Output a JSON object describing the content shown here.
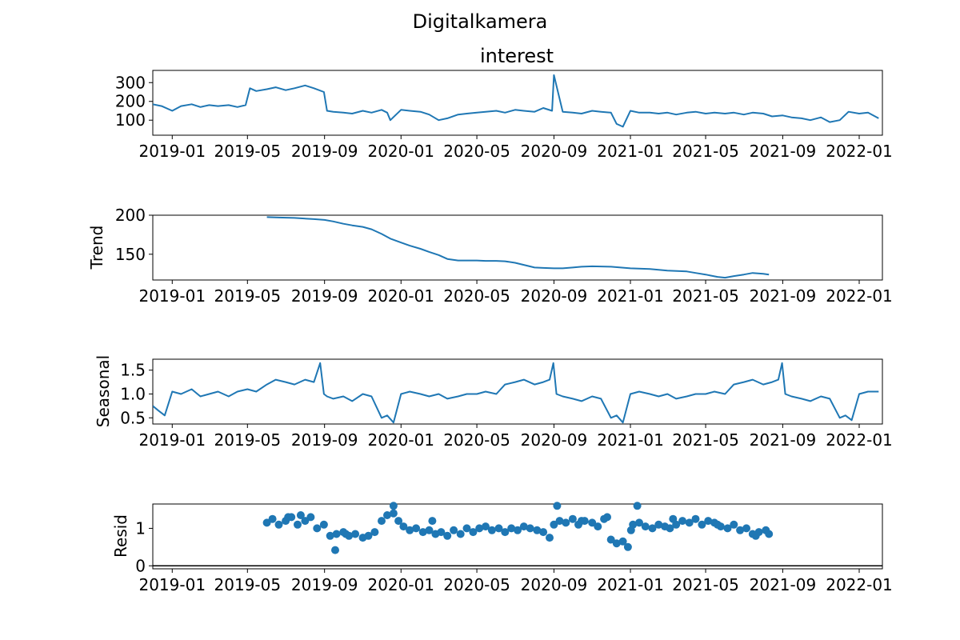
{
  "figure": {
    "suptitle": "Digitalkamera"
  },
  "chart_data": [
    {
      "id": "observed",
      "type": "line",
      "title": "interest",
      "ylabel": "",
      "xlim": [
        "2018-12-01",
        "2022-02-07"
      ],
      "ylim": [
        20,
        365
      ],
      "yticks": [
        100,
        200,
        300
      ],
      "ytick_labels": [
        "100",
        "200",
        "300"
      ],
      "xticks": [
        "2019-01-01",
        "2019-05-01",
        "2019-09-01",
        "2020-01-01",
        "2020-05-01",
        "2020-09-01",
        "2021-01-01",
        "2021-05-01",
        "2021-09-01",
        "2022-01-01"
      ],
      "xtick_labels": [
        "2019-01",
        "2019-05",
        "2019-09",
        "2020-01",
        "2020-05",
        "2020-09",
        "2021-01",
        "2021-05",
        "2021-09",
        "2022-01"
      ],
      "series": [
        {
          "color": "#1f77b4",
          "x": [
            "2018-12-01",
            "2018-12-15",
            "2019-01-01",
            "2019-01-15",
            "2019-02-01",
            "2019-02-15",
            "2019-03-01",
            "2019-03-15",
            "2019-04-01",
            "2019-04-15",
            "2019-04-28",
            "2019-05-05",
            "2019-05-15",
            "2019-06-01",
            "2019-06-15",
            "2019-07-01",
            "2019-07-15",
            "2019-08-01",
            "2019-08-15",
            "2019-08-31",
            "2019-09-05",
            "2019-09-15",
            "2019-10-01",
            "2019-10-15",
            "2019-11-01",
            "2019-11-15",
            "2019-12-01",
            "2019-12-10",
            "2019-12-15",
            "2020-01-01",
            "2020-01-15",
            "2020-02-01",
            "2020-02-15",
            "2020-03-01",
            "2020-03-15",
            "2020-04-01",
            "2020-04-15",
            "2020-05-01",
            "2020-05-15",
            "2020-06-01",
            "2020-06-15",
            "2020-07-01",
            "2020-07-15",
            "2020-08-01",
            "2020-08-15",
            "2020-08-29",
            "2020-09-01",
            "2020-09-15",
            "2020-10-01",
            "2020-10-15",
            "2020-11-01",
            "2020-11-15",
            "2020-12-01",
            "2020-12-10",
            "2020-12-20",
            "2021-01-01",
            "2021-01-15",
            "2021-02-01",
            "2021-02-15",
            "2021-03-01",
            "2021-03-15",
            "2021-04-01",
            "2021-04-15",
            "2021-05-01",
            "2021-05-15",
            "2021-06-01",
            "2021-06-15",
            "2021-07-01",
            "2021-07-15",
            "2021-08-01",
            "2021-08-15",
            "2021-09-01",
            "2021-09-15",
            "2021-10-01",
            "2021-10-15",
            "2021-11-01",
            "2021-11-15",
            "2021-12-01",
            "2021-12-15",
            "2022-01-01",
            "2022-01-15",
            "2022-02-01"
          ],
          "y": [
            185,
            175,
            150,
            175,
            185,
            170,
            180,
            175,
            180,
            170,
            180,
            270,
            255,
            265,
            275,
            260,
            270,
            285,
            270,
            250,
            150,
            145,
            140,
            135,
            150,
            140,
            155,
            140,
            100,
            155,
            150,
            145,
            130,
            100,
            110,
            130,
            135,
            140,
            145,
            150,
            140,
            155,
            150,
            145,
            165,
            150,
            340,
            145,
            140,
            135,
            150,
            145,
            140,
            80,
            65,
            150,
            140,
            140,
            135,
            140,
            130,
            140,
            145,
            135,
            140,
            135,
            140,
            130,
            140,
            135,
            120,
            125,
            115,
            110,
            100,
            115,
            90,
            100,
            145,
            135,
            140,
            110
          ]
        }
      ]
    },
    {
      "id": "trend",
      "type": "line",
      "title": "",
      "ylabel": "Trend",
      "xlim": [
        "2018-12-01",
        "2022-02-07"
      ],
      "ylim": [
        117,
        200
      ],
      "yticks": [
        150,
        200
      ],
      "ytick_labels": [
        "150",
        "200"
      ],
      "xticks": [
        "2019-01-01",
        "2019-05-01",
        "2019-09-01",
        "2020-01-01",
        "2020-05-01",
        "2020-09-01",
        "2021-01-01",
        "2021-05-01",
        "2021-09-01",
        "2022-01-01"
      ],
      "xtick_labels": [
        "2019-01",
        "2019-05",
        "2019-09",
        "2020-01",
        "2020-05",
        "2020-09",
        "2021-01",
        "2021-05",
        "2021-09",
        "2022-01"
      ],
      "series": [
        {
          "color": "#1f77b4",
          "x": [
            "2019-06-01",
            "2019-06-20",
            "2019-07-15",
            "2019-08-15",
            "2019-09-01",
            "2019-09-15",
            "2019-10-01",
            "2019-10-15",
            "2019-11-01",
            "2019-11-15",
            "2019-12-01",
            "2019-12-15",
            "2020-01-01",
            "2020-01-15",
            "2020-02-01",
            "2020-02-15",
            "2020-03-01",
            "2020-03-15",
            "2020-04-01",
            "2020-04-15",
            "2020-05-01",
            "2020-05-15",
            "2020-06-01",
            "2020-06-15",
            "2020-07-01",
            "2020-08-01",
            "2020-08-15",
            "2020-09-01",
            "2020-09-15",
            "2020-10-01",
            "2020-10-15",
            "2020-11-01",
            "2020-12-01",
            "2021-01-01",
            "2021-02-01",
            "2021-03-01",
            "2021-04-01",
            "2021-04-15",
            "2021-05-01",
            "2021-05-10",
            "2021-05-20",
            "2021-06-01",
            "2021-06-15",
            "2021-07-01",
            "2021-07-15",
            "2021-08-01",
            "2021-08-10"
          ],
          "y": [
            197.5,
            197,
            196.5,
            195,
            194,
            192,
            189,
            187,
            185,
            182,
            176,
            170,
            165,
            161,
            157,
            153,
            149,
            144,
            142,
            142,
            142,
            141.5,
            141.5,
            141,
            139,
            133,
            132.5,
            132,
            132,
            133,
            134,
            134.5,
            134,
            132,
            131,
            129,
            128,
            126,
            124,
            122.5,
            121,
            120,
            122,
            124,
            126,
            125,
            124
          ]
        }
      ]
    },
    {
      "id": "seasonal",
      "type": "line",
      "title": "",
      "ylabel": "Seasonal",
      "xlim": [
        "2018-12-01",
        "2022-02-07"
      ],
      "ylim": [
        0.37,
        1.73
      ],
      "yticks": [
        0.5,
        1.0,
        1.5
      ],
      "ytick_labels": [
        "0.5",
        "1.0",
        "1.5"
      ],
      "xticks": [
        "2019-01-01",
        "2019-05-01",
        "2019-09-01",
        "2020-01-01",
        "2020-05-01",
        "2020-09-01",
        "2021-01-01",
        "2021-05-01",
        "2021-09-01",
        "2022-01-01"
      ],
      "xtick_labels": [
        "2019-01",
        "2019-05",
        "2019-09",
        "2020-01",
        "2020-05",
        "2020-09",
        "2021-01",
        "2021-05",
        "2021-09",
        "2022-01"
      ],
      "series": [
        {
          "color": "#1f77b4",
          "x": [
            "2018-12-01",
            "2018-12-10",
            "2018-12-20",
            "2019-01-01",
            "2019-01-15",
            "2019-02-01",
            "2019-02-15",
            "2019-03-01",
            "2019-03-15",
            "2019-04-01",
            "2019-04-15",
            "2019-05-01",
            "2019-05-15",
            "2019-06-01",
            "2019-06-15",
            "2019-07-01",
            "2019-07-15",
            "2019-08-01",
            "2019-08-15",
            "2019-08-25",
            "2019-08-31",
            "2019-09-05",
            "2019-09-15",
            "2019-10-01",
            "2019-10-15",
            "2019-11-01",
            "2019-11-15",
            "2019-12-01",
            "2019-12-10",
            "2019-12-20",
            "2020-01-01",
            "2020-01-15",
            "2020-02-01",
            "2020-02-15",
            "2020-03-01",
            "2020-03-15",
            "2020-04-01",
            "2020-04-15",
            "2020-05-01",
            "2020-05-15",
            "2020-06-01",
            "2020-06-15",
            "2020-07-01",
            "2020-07-15",
            "2020-08-01",
            "2020-08-15",
            "2020-08-25",
            "2020-08-31",
            "2020-09-05",
            "2020-09-15",
            "2020-10-01",
            "2020-10-15",
            "2020-11-01",
            "2020-11-15",
            "2020-12-01",
            "2020-12-10",
            "2020-12-20",
            "2021-01-01",
            "2021-01-15",
            "2021-02-01",
            "2021-02-15",
            "2021-03-01",
            "2021-03-15",
            "2021-04-01",
            "2021-04-15",
            "2021-05-01",
            "2021-05-15",
            "2021-06-01",
            "2021-06-15",
            "2021-07-01",
            "2021-07-15",
            "2021-08-01",
            "2021-08-15",
            "2021-08-25",
            "2021-08-31",
            "2021-09-05",
            "2021-09-15",
            "2021-10-01",
            "2021-10-15",
            "2021-11-01",
            "2021-11-15",
            "2021-12-01",
            "2021-12-10",
            "2021-12-20",
            "2022-01-01",
            "2022-01-15",
            "2022-02-01"
          ],
          "y": [
            0.75,
            0.65,
            0.55,
            1.05,
            1.0,
            1.1,
            0.95,
            1.0,
            1.05,
            0.95,
            1.05,
            1.1,
            1.05,
            1.2,
            1.3,
            1.25,
            1.2,
            1.3,
            1.25,
            1.65,
            1.0,
            0.95,
            0.9,
            0.95,
            0.85,
            1.0,
            0.95,
            0.5,
            0.55,
            0.4,
            1.0,
            1.05,
            1.0,
            0.95,
            1.0,
            0.9,
            0.95,
            1.0,
            1.0,
            1.05,
            1.0,
            1.2,
            1.25,
            1.3,
            1.2,
            1.25,
            1.3,
            1.65,
            1.0,
            0.95,
            0.9,
            0.85,
            0.95,
            0.9,
            0.5,
            0.55,
            0.4,
            1.0,
            1.05,
            1.0,
            0.95,
            1.0,
            0.9,
            0.95,
            1.0,
            1.0,
            1.05,
            1.0,
            1.2,
            1.25,
            1.3,
            1.2,
            1.25,
            1.3,
            1.65,
            1.0,
            0.95,
            0.9,
            0.85,
            0.95,
            0.9,
            0.5,
            0.55,
            0.45,
            1.0,
            1.05,
            1.05
          ]
        }
      ]
    },
    {
      "id": "resid",
      "type": "scatter",
      "title": "",
      "ylabel": "Resid",
      "xlim": [
        "2018-12-01",
        "2022-02-07"
      ],
      "ylim": [
        -0.08,
        1.65
      ],
      "yticks": [
        0,
        1
      ],
      "ytick_labels": [
        "0",
        "1"
      ],
      "baseline": 0,
      "xticks": [
        "2019-01-01",
        "2019-05-01",
        "2019-09-01",
        "2020-01-01",
        "2020-05-01",
        "2020-09-01",
        "2021-01-01",
        "2021-05-01",
        "2021-09-01",
        "2022-01-01"
      ],
      "xtick_labels": [
        "2019-01",
        "2019-05",
        "2019-09",
        "2020-01",
        "2020-05",
        "2020-09",
        "2021-01",
        "2021-05",
        "2021-09",
        "2022-01"
      ],
      "series": [
        {
          "color": "#1f77b4",
          "x": [
            "2019-06-01",
            "2019-06-10",
            "2019-06-20",
            "2019-07-01",
            "2019-07-10",
            "2019-07-20",
            "2019-08-01",
            "2019-08-10",
            "2019-08-20",
            "2019-08-31",
            "2019-09-10",
            "2019-09-20",
            "2019-10-01",
            "2019-10-10",
            "2019-10-20",
            "2019-11-01",
            "2019-11-10",
            "2019-11-20",
            "2019-12-01",
            "2019-12-10",
            "2019-12-20",
            "2019-12-28",
            "2020-01-05",
            "2020-01-15",
            "2020-01-25",
            "2020-02-05",
            "2020-02-15",
            "2020-02-25",
            "2020-03-05",
            "2020-03-15",
            "2020-03-25",
            "2020-04-05",
            "2020-04-15",
            "2020-04-25",
            "2020-05-05",
            "2020-05-15",
            "2020-05-25",
            "2020-06-05",
            "2020-06-15",
            "2020-06-25",
            "2020-07-05",
            "2020-07-15",
            "2020-07-25",
            "2020-08-05",
            "2020-08-15",
            "2020-08-25",
            "2020-09-01",
            "2020-09-10",
            "2020-09-20",
            "2020-10-01",
            "2020-10-10",
            "2020-10-20",
            "2020-11-01",
            "2020-11-10",
            "2020-11-20",
            "2020-12-01",
            "2020-12-10",
            "2020-12-20",
            "2020-12-28",
            "2021-01-05",
            "2021-01-15",
            "2021-01-25",
            "2021-02-05",
            "2021-02-15",
            "2021-02-25",
            "2021-03-05",
            "2021-03-15",
            "2021-03-25",
            "2021-04-05",
            "2021-04-15",
            "2021-04-25",
            "2021-05-05",
            "2021-05-15",
            "2021-05-25",
            "2021-06-05",
            "2021-06-15",
            "2021-06-25",
            "2021-07-05",
            "2021-07-15",
            "2021-07-25",
            "2021-08-05",
            "2021-08-10",
            "2019-09-18",
            "2019-12-20",
            "2020-09-06",
            "2021-01-12",
            "2021-01-02",
            "2019-07-05",
            "2019-07-25",
            "2020-10-15",
            "2021-03-10",
            "2020-11-25",
            "2019-10-05",
            "2020-02-20",
            "2021-05-20",
            "2021-07-20"
          ],
          "y": [
            1.15,
            1.25,
            1.1,
            1.2,
            1.3,
            1.1,
            1.2,
            1.3,
            1.0,
            1.1,
            0.8,
            0.85,
            0.9,
            0.8,
            0.85,
            0.75,
            0.8,
            0.9,
            1.2,
            1.35,
            1.4,
            1.2,
            1.05,
            0.95,
            1.0,
            0.9,
            0.95,
            0.85,
            0.9,
            0.8,
            0.95,
            0.85,
            1.0,
            0.9,
            1.0,
            1.05,
            0.95,
            1.0,
            0.9,
            1.0,
            0.95,
            1.05,
            1.0,
            0.95,
            0.9,
            0.75,
            1.1,
            1.2,
            1.15,
            1.25,
            1.1,
            1.2,
            1.15,
            1.05,
            1.25,
            0.7,
            0.6,
            0.65,
            0.5,
            1.1,
            1.15,
            1.05,
            1.0,
            1.1,
            1.05,
            1.0,
            1.1,
            1.2,
            1.15,
            1.25,
            1.1,
            1.2,
            1.15,
            1.05,
            1.0,
            1.1,
            0.95,
            1.0,
            0.85,
            0.9,
            0.95,
            0.85,
            0.42,
            1.6,
            1.6,
            1.6,
            0.95,
            1.3,
            1.35,
            1.2,
            1.25,
            1.3,
            0.85,
            1.2,
            1.1,
            0.8
          ]
        }
      ]
    }
  ]
}
